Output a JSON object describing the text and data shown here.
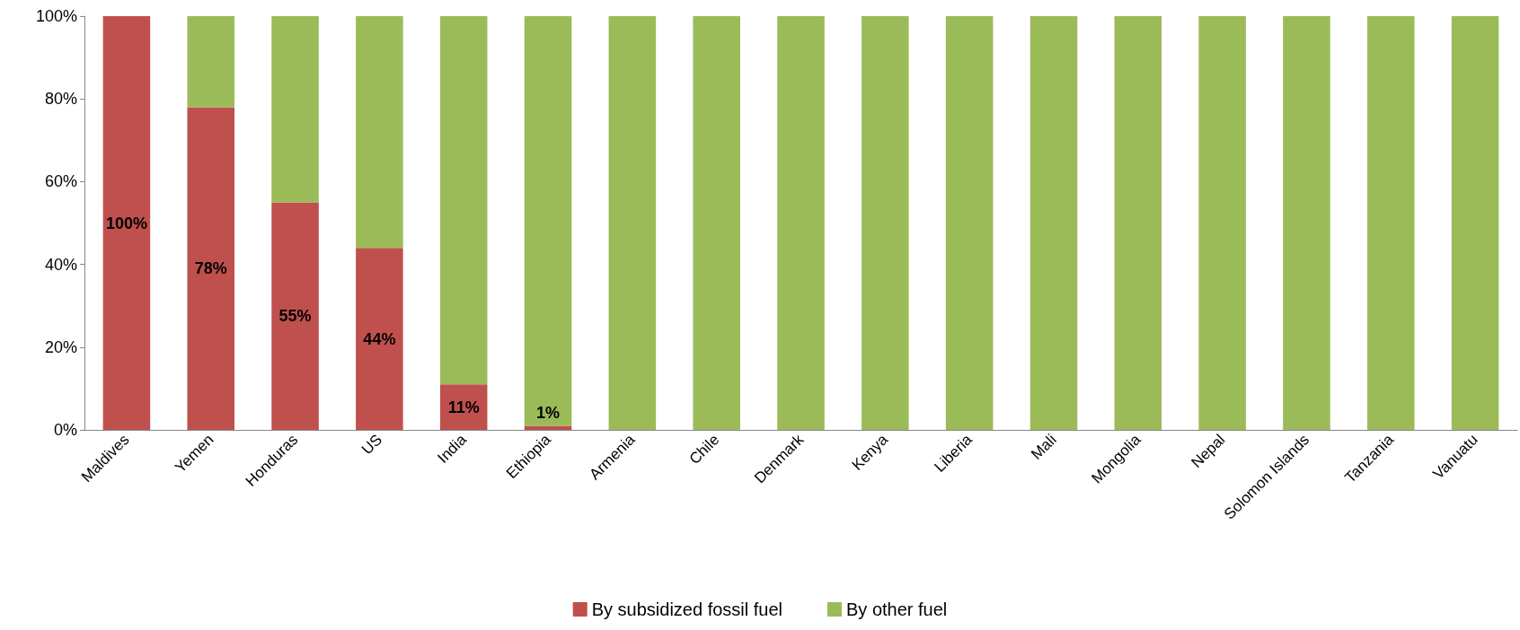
{
  "chart_data": {
    "type": "bar",
    "stacked": true,
    "categories": [
      "Maldives",
      "Yemen",
      "Honduras",
      "US",
      "India",
      "Ethiopia",
      "Armenia",
      "Chile",
      "Denmark",
      "Kenya",
      "Liberia",
      "Mali",
      "Mongolia",
      "Nepal",
      "Solomon Islands",
      "Tanzania",
      "Vanuatu"
    ],
    "series": [
      {
        "name": "By subsidized fossil fuel",
        "color": "#c0504d",
        "values": [
          100,
          78,
          55,
          44,
          11,
          1,
          0,
          0,
          0,
          0,
          0,
          0,
          0,
          0,
          0,
          0,
          0
        ],
        "value_labels": [
          "100%",
          "78%",
          "55%",
          "44%",
          "11%",
          "1%",
          null,
          null,
          null,
          null,
          null,
          null,
          null,
          null,
          null,
          null,
          null
        ]
      },
      {
        "name": "By other fuel",
        "color": "#9bbb59",
        "values": [
          0,
          22,
          45,
          56,
          89,
          99,
          100,
          100,
          100,
          100,
          100,
          100,
          100,
          100,
          100,
          100,
          100
        ]
      }
    ],
    "ylim": [
      0,
      100
    ],
    "yticks": [
      {
        "value": 0,
        "label": "0%"
      },
      {
        "value": 20,
        "label": "20%"
      },
      {
        "value": 40,
        "label": "40%"
      },
      {
        "value": 60,
        "label": "60%"
      },
      {
        "value": 80,
        "label": "80%"
      },
      {
        "value": 100,
        "label": "100%"
      }
    ],
    "grid": false,
    "legend": "bottom"
  }
}
